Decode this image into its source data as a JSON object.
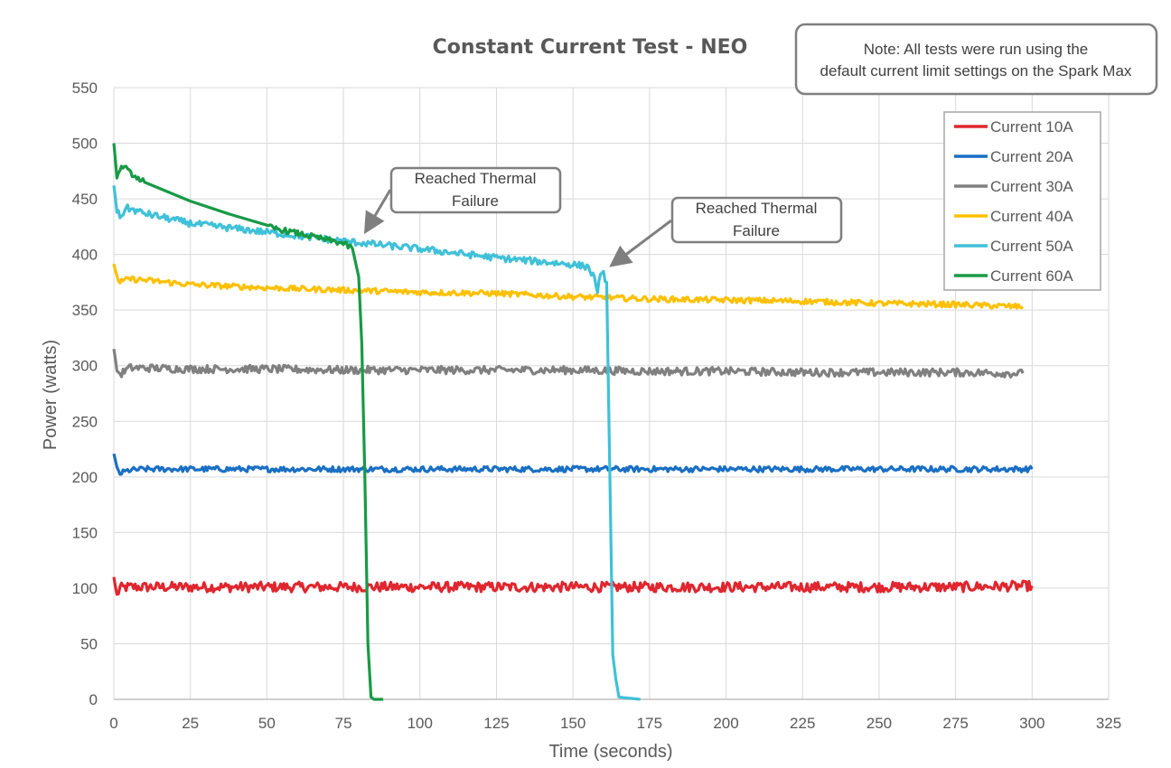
{
  "chart_data": {
    "type": "line",
    "title": "Constant Current Test - NEO",
    "xlabel": "Time (seconds)",
    "ylabel": "Power (watts)",
    "xlim": [
      0,
      325
    ],
    "ylim": [
      0,
      550
    ],
    "xticks": [
      0,
      25,
      50,
      75,
      100,
      125,
      150,
      175,
      200,
      225,
      250,
      275,
      300,
      325
    ],
    "yticks": [
      0,
      50,
      100,
      150,
      200,
      250,
      300,
      350,
      400,
      450,
      500,
      550
    ],
    "grid": true,
    "legend_position": "top-right",
    "note": "Note: All tests were run using the default current limit settings on the Spark Max",
    "series": [
      {
        "name": "Current 10A",
        "color": "#e0262f",
        "x": [
          0,
          1,
          2,
          5,
          10,
          25,
          50,
          75,
          100,
          125,
          150,
          175,
          200,
          225,
          250,
          275,
          300
        ],
        "y": [
          110,
          93,
          100,
          101,
          101,
          101,
          101,
          101,
          101,
          101,
          101,
          101,
          101,
          101,
          101,
          101,
          102
        ]
      },
      {
        "name": "Current 20A",
        "color": "#1a6fc4",
        "x": [
          0,
          1,
          2,
          5,
          10,
          25,
          50,
          75,
          100,
          125,
          150,
          175,
          200,
          225,
          250,
          275,
          300
        ],
        "y": [
          220,
          207,
          203,
          206,
          207,
          207,
          207,
          207,
          207,
          207,
          207,
          207,
          207,
          207,
          207,
          207,
          207
        ]
      },
      {
        "name": "Current 30A",
        "color": "#808080",
        "x": [
          0,
          1,
          2,
          5,
          10,
          25,
          50,
          75,
          100,
          125,
          150,
          175,
          200,
          225,
          250,
          275,
          297
        ],
        "y": [
          315,
          297,
          292,
          298,
          298,
          297,
          297,
          296,
          296,
          296,
          296,
          295,
          295,
          294,
          294,
          294,
          293
        ]
      },
      {
        "name": "Current 40A",
        "color": "#ffc000",
        "x": [
          0,
          1,
          2,
          5,
          10,
          25,
          50,
          75,
          100,
          125,
          150,
          175,
          200,
          225,
          250,
          275,
          297
        ],
        "y": [
          393,
          380,
          375,
          378,
          377,
          373,
          370,
          368,
          366,
          365,
          362,
          360,
          359,
          358,
          356,
          355,
          353
        ]
      },
      {
        "name": "Current 50A",
        "color": "#3fc1d8",
        "x": [
          0,
          1,
          2,
          4,
          10,
          25,
          50,
          75,
          100,
          125,
          150,
          155,
          157,
          158,
          159,
          160,
          161,
          162,
          163,
          164,
          165,
          172
        ],
        "y": [
          462,
          440,
          433,
          442,
          437,
          428,
          420,
          412,
          405,
          397,
          391,
          389,
          378,
          368,
          380,
          382,
          375,
          210,
          40,
          18,
          2,
          0
        ]
      },
      {
        "name": "Current 60A",
        "color": "#189a45",
        "x": [
          0,
          1,
          2,
          3,
          5,
          10,
          25,
          50,
          75,
          78,
          80,
          81,
          82,
          83,
          84,
          85,
          88
        ],
        "y": [
          500,
          470,
          475,
          480,
          474,
          465,
          448,
          425,
          410,
          405,
          380,
          320,
          200,
          50,
          2,
          0,
          0
        ]
      }
    ],
    "annotations": [
      {
        "text_line1": "Reached Thermal",
        "text_line2": "Failure",
        "points_to": {
          "x": 83,
          "y": 415
        }
      },
      {
        "text_line1": "Reached Thermal",
        "text_line2": "Failure",
        "points_to": {
          "x": 164,
          "y": 385
        }
      }
    ]
  }
}
